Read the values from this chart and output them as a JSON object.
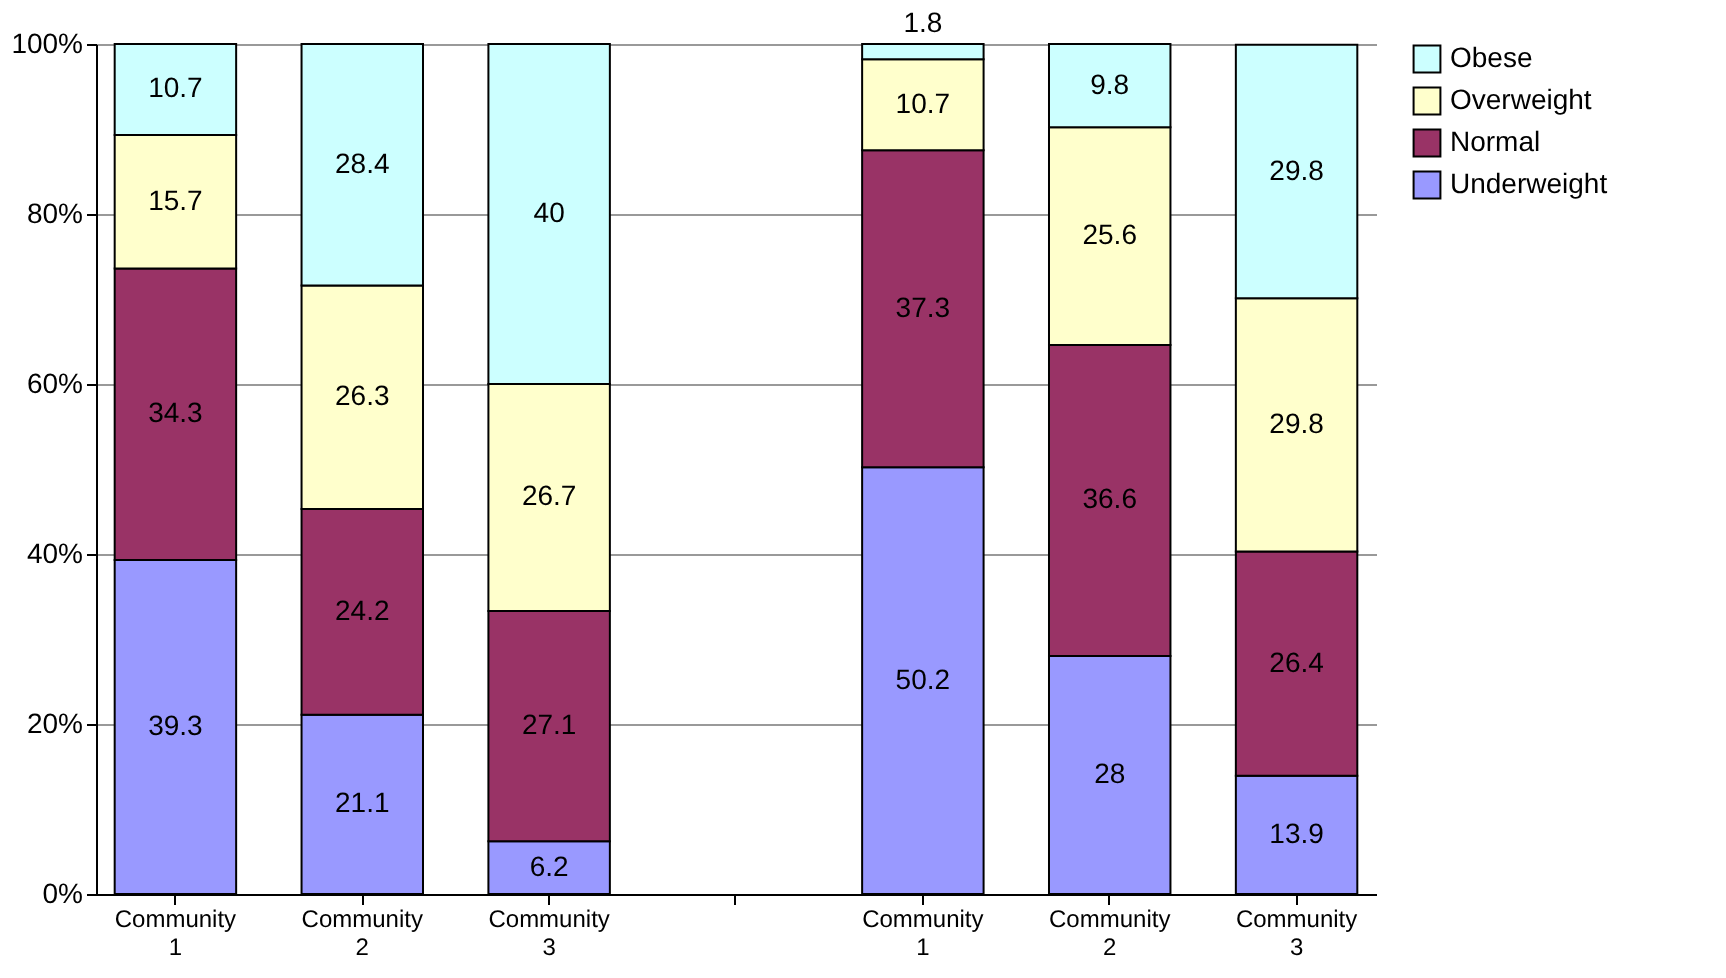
{
  "chart_data": {
    "type": "bar",
    "stacked": true,
    "categories": [
      "Community 1",
      "Community 2",
      "Community 3",
      null,
      "Community 1",
      "Community 2",
      "Community 3"
    ],
    "series": [
      {
        "name": "Underweight",
        "color": "#9999ff",
        "values": [
          39.3,
          21.1,
          6.2,
          null,
          50.2,
          28,
          13.9
        ]
      },
      {
        "name": "Normal",
        "color": "#993366",
        "values": [
          34.3,
          24.2,
          27.1,
          null,
          37.3,
          36.6,
          26.4
        ]
      },
      {
        "name": "Overweight",
        "color": "#ffffcc",
        "values": [
          15.7,
          26.3,
          26.7,
          null,
          10.7,
          25.6,
          29.8
        ]
      },
      {
        "name": "Obese",
        "color": "#ccffff",
        "values": [
          10.7,
          28.4,
          40,
          null,
          1.8,
          9.8,
          29.8
        ]
      }
    ],
    "ylim": [
      0,
      100
    ],
    "yticks": [
      {
        "value": 0,
        "label": "0%"
      },
      {
        "value": 20,
        "label": "20%"
      },
      {
        "value": 40,
        "label": "40%"
      },
      {
        "value": 60,
        "label": "60%"
      },
      {
        "value": 80,
        "label": "80%"
      },
      {
        "value": 100,
        "label": "100%"
      }
    ],
    "grid": "y",
    "legend": "right",
    "data_labels": true
  }
}
